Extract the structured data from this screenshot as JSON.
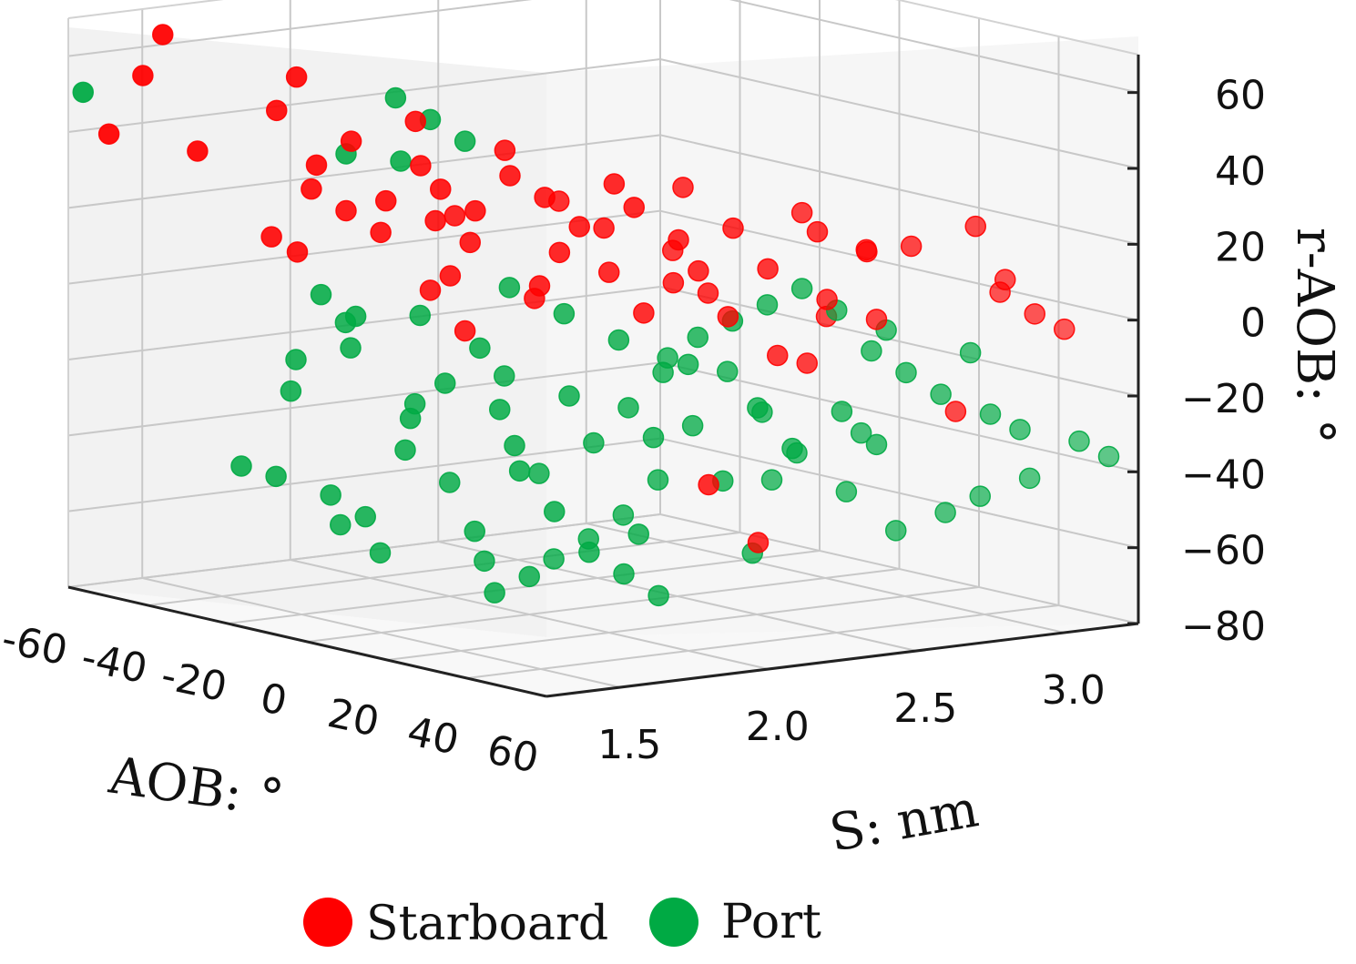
{
  "chart_data": {
    "type": "scatter",
    "subtype": "3d",
    "title": "",
    "axes": {
      "x": {
        "label": "AOB: °",
        "ticks": [
          "-60",
          "-40",
          "-20",
          "0",
          "20",
          "40",
          "60"
        ],
        "range": [
          -60,
          60
        ]
      },
      "y": {
        "label": "S: nm",
        "ticks": [
          "1.5",
          "2.0",
          "2.5",
          "3.0"
        ],
        "range": [
          1.25,
          3.25
        ]
      },
      "z": {
        "label": "r-AOB: °",
        "ticks": [
          "60",
          "40",
          "20",
          "0",
          "−20",
          "−40",
          "−60",
          "−80"
        ],
        "range": [
          -80,
          70
        ]
      }
    },
    "grid": true,
    "legend": {
      "placement": "bottom-center"
    },
    "series": [
      {
        "name": "Starboard",
        "color": "#ff0000",
        "points": [
          [
            -40,
            1.3,
            70
          ],
          [
            -45,
            1.3,
            58
          ],
          [
            -55,
            1.32,
            40
          ],
          [
            -35,
            1.35,
            40
          ],
          [
            -25,
            1.55,
            60
          ],
          [
            -30,
            1.55,
            50
          ],
          [
            -20,
            1.55,
            38
          ],
          [
            -15,
            1.6,
            45
          ],
          [
            -25,
            1.6,
            30
          ],
          [
            -20,
            1.65,
            25
          ],
          [
            -15,
            1.7,
            20
          ],
          [
            -35,
            1.6,
            15
          ],
          [
            -30,
            1.62,
            12
          ],
          [
            -10,
            1.65,
            30
          ],
          [
            -5,
            1.7,
            40
          ],
          [
            -5,
            1.75,
            25
          ],
          [
            0,
            1.7,
            35
          ],
          [
            5,
            1.75,
            30
          ],
          [
            0,
            1.8,
            20
          ],
          [
            -5,
            1.8,
            10
          ],
          [
            -10,
            1.8,
            5
          ],
          [
            10,
            1.8,
            40
          ],
          [
            15,
            1.85,
            35
          ],
          [
            15,
            1.9,
            20
          ],
          [
            20,
            1.9,
            28
          ],
          [
            25,
            1.95,
            40
          ],
          [
            30,
            1.95,
            35
          ],
          [
            10,
            1.9,
            10
          ],
          [
            5,
            1.95,
            5
          ],
          [
            -5,
            1.85,
            -5
          ],
          [
            20,
            2.0,
            15
          ],
          [
            25,
            2.05,
            5
          ],
          [
            30,
            2.1,
            25
          ],
          [
            35,
            2.1,
            18
          ],
          [
            40,
            2.15,
            30
          ],
          [
            30,
            2.2,
            10
          ],
          [
            45,
            2.2,
            20
          ],
          [
            50,
            2.3,
            30
          ],
          [
            55,
            2.4,
            25
          ],
          [
            45,
            2.4,
            10
          ],
          [
            50,
            2.5,
            5
          ],
          [
            55,
            2.55,
            25
          ],
          [
            40,
            2.6,
            20
          ],
          [
            60,
            2.7,
            30
          ],
          [
            60,
            2.8,
            15
          ],
          [
            55,
            2.85,
            10
          ],
          [
            60,
            2.9,
            5
          ],
          [
            60,
            3.0,
            0
          ],
          [
            40,
            2.4,
            -8
          ],
          [
            55,
            2.7,
            -20
          ],
          [
            45,
            2.0,
            -35
          ],
          [
            50,
            2.1,
            -50
          ],
          [
            40,
            2.3,
            -5
          ],
          [
            35,
            2.2,
            5
          ],
          [
            25,
            2.15,
            12
          ],
          [
            15,
            2.05,
            25
          ],
          [
            -10,
            1.75,
            50
          ],
          [
            5,
            1.85,
            45
          ],
          [
            20,
            2.25,
            35
          ],
          [
            35,
            2.45,
            30
          ],
          [
            10,
            2.35,
            15
          ],
          [
            0,
            2.1,
            28
          ],
          [
            -15,
            1.95,
            22
          ],
          [
            30,
            2.6,
            0
          ]
        ]
      },
      {
        "name": "Port",
        "color": "#00aa44",
        "points": [
          [
            -60,
            1.3,
            50
          ],
          [
            -15,
            1.75,
            55
          ],
          [
            -10,
            1.8,
            50
          ],
          [
            -5,
            1.85,
            45
          ],
          [
            -20,
            1.65,
            40
          ],
          [
            -10,
            1.7,
            40
          ],
          [
            -30,
            1.7,
            0
          ],
          [
            -25,
            1.75,
            -5
          ],
          [
            -40,
            1.75,
            -20
          ],
          [
            -45,
            1.8,
            -30
          ],
          [
            -50,
            1.7,
            -50
          ],
          [
            -45,
            1.75,
            -52
          ],
          [
            -35,
            1.8,
            -55
          ],
          [
            -30,
            1.85,
            -60
          ],
          [
            -40,
            1.9,
            -65
          ],
          [
            -30,
            1.9,
            -70
          ],
          [
            -20,
            1.85,
            -40
          ],
          [
            -15,
            1.8,
            -30
          ],
          [
            -10,
            1.85,
            -20
          ],
          [
            -5,
            1.9,
            -10
          ],
          [
            0,
            1.9,
            -25
          ],
          [
            5,
            1.9,
            -40
          ],
          [
            10,
            1.95,
            -50
          ],
          [
            15,
            2.0,
            -60
          ],
          [
            20,
            2.05,
            -65
          ],
          [
            25,
            2.1,
            -70
          ],
          [
            20,
            2.1,
            -55
          ],
          [
            0,
            2.0,
            -70
          ],
          [
            -5,
            1.95,
            -75
          ],
          [
            -10,
            1.95,
            -60
          ],
          [
            -20,
            2.0,
            -50
          ],
          [
            -5,
            2.1,
            -45
          ],
          [
            5,
            2.15,
            -35
          ],
          [
            10,
            2.2,
            -25
          ],
          [
            15,
            2.25,
            -15
          ],
          [
            20,
            2.3,
            -5
          ],
          [
            25,
            2.35,
            0
          ],
          [
            30,
            2.4,
            5
          ],
          [
            35,
            2.45,
            10
          ],
          [
            40,
            2.5,
            5
          ],
          [
            45,
            2.55,
            -5
          ],
          [
            50,
            2.6,
            -10
          ],
          [
            55,
            2.65,
            -15
          ],
          [
            60,
            2.75,
            -20
          ],
          [
            60,
            2.85,
            -25
          ],
          [
            60,
            3.05,
            -30
          ],
          [
            60,
            3.15,
            -35
          ],
          [
            55,
            2.95,
            -40
          ],
          [
            50,
            2.85,
            -45
          ],
          [
            45,
            2.8,
            -50
          ],
          [
            40,
            2.7,
            -55
          ],
          [
            35,
            2.6,
            -45
          ],
          [
            30,
            2.5,
            -35
          ],
          [
            25,
            2.45,
            -25
          ],
          [
            20,
            2.4,
            -15
          ],
          [
            15,
            2.35,
            -30
          ],
          [
            10,
            2.3,
            -45
          ],
          [
            5,
            2.25,
            -55
          ],
          [
            0,
            2.2,
            -62
          ],
          [
            -5,
            2.15,
            -68
          ],
          [
            -15,
            2.05,
            -70
          ],
          [
            30,
            2.25,
            -40
          ],
          [
            40,
            2.35,
            -30
          ],
          [
            45,
            2.45,
            -20
          ],
          [
            50,
            2.5,
            -28
          ],
          [
            35,
            2.3,
            -20
          ],
          [
            25,
            2.2,
            -10
          ],
          [
            15,
            2.1,
            -5
          ],
          [
            5,
            2.05,
            0
          ],
          [
            -5,
            2.0,
            5
          ],
          [
            -20,
            1.9,
            -5
          ],
          [
            -30,
            1.8,
            -15
          ],
          [
            0,
            1.95,
            -35
          ],
          [
            10,
            2.0,
            -20
          ],
          [
            20,
            2.15,
            -30
          ],
          [
            30,
            2.35,
            -60
          ],
          [
            -25,
            1.95,
            -30
          ],
          [
            -35,
            1.85,
            -10
          ],
          [
            45,
            2.6,
            0
          ],
          [
            55,
            2.75,
            -5
          ],
          [
            -10,
            2.05,
            -20
          ],
          [
            5,
            2.4,
            -15
          ],
          [
            35,
            2.65,
            -30
          ],
          [
            20,
            2.55,
            -45
          ]
        ]
      }
    ]
  }
}
